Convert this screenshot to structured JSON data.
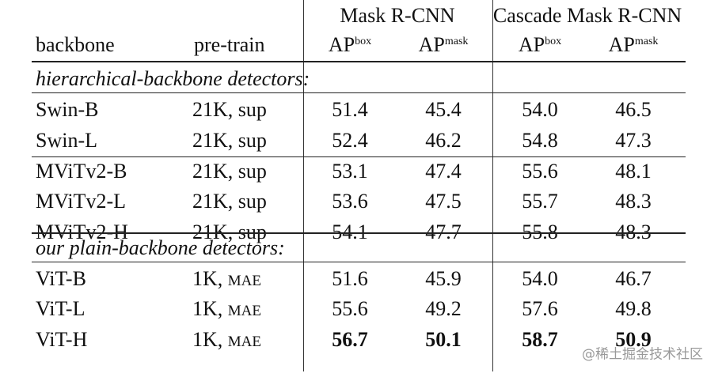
{
  "header": {
    "backbone": "backbone",
    "pretrain": "pre-train",
    "groups": [
      {
        "label": "Mask R-CNN",
        "metrics": [
          {
            "base": "AP",
            "sup": "box"
          },
          {
            "base": "AP",
            "sup": "mask"
          }
        ]
      },
      {
        "label": "Cascade Mask R-CNN",
        "metrics": [
          {
            "base": "AP",
            "sup": "box"
          },
          {
            "base": "AP",
            "sup": "mask"
          }
        ]
      }
    ]
  },
  "sections": [
    {
      "title": "hierarchical-backbone detectors:",
      "groups": [
        [
          {
            "backbone": "Swin-B",
            "pretrain": "21K, sup",
            "values": [
              "51.4",
              "45.4",
              "54.0",
              "46.5"
            ]
          },
          {
            "backbone": "Swin-L",
            "pretrain": "21K, sup",
            "values": [
              "52.4",
              "46.2",
              "54.8",
              "47.3"
            ]
          }
        ],
        [
          {
            "backbone": "MViTv2-B",
            "pretrain": "21K, sup",
            "values": [
              "53.1",
              "47.4",
              "55.6",
              "48.1"
            ]
          },
          {
            "backbone": "MViTv2-L",
            "pretrain": "21K, sup",
            "values": [
              "53.6",
              "47.5",
              "55.7",
              "48.3"
            ]
          },
          {
            "backbone": "MViTv2-H",
            "pretrain": "21K, sup",
            "values": [
              "54.1",
              "47.7",
              "55.8",
              "48.3"
            ]
          }
        ]
      ]
    },
    {
      "title": "our plain-backbone detectors:",
      "groups": [
        [
          {
            "backbone": "ViT-B",
            "pretrain": "1K,",
            "pretrain_sc": "MAE",
            "values": [
              "51.6",
              "45.9",
              "54.0",
              "46.7"
            ]
          },
          {
            "backbone": "ViT-L",
            "pretrain": "1K,",
            "pretrain_sc": "MAE",
            "values": [
              "55.6",
              "49.2",
              "57.6",
              "49.8"
            ]
          },
          {
            "backbone": "ViT-H",
            "pretrain": "1K,",
            "pretrain_sc": "MAE",
            "values": [
              "56.7",
              "50.1",
              "58.7",
              "50.9"
            ],
            "bold": true
          }
        ]
      ]
    }
  ],
  "watermark": "@稀土掘金技术社区"
}
